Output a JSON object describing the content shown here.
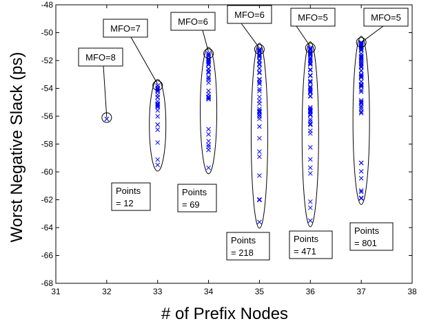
{
  "chart_data": {
    "type": "scatter",
    "xlabel": "# of Prefix Nodes",
    "ylabel": "Worst Negative Slack (ps)",
    "xlim": [
      31,
      38
    ],
    "ylim": [
      -68,
      -48
    ],
    "xticks": [
      31,
      32,
      33,
      34,
      35,
      36,
      37,
      38
    ],
    "yticks": [
      -68,
      -66,
      -64,
      -62,
      -60,
      -58,
      -56,
      -54,
      -52,
      -50,
      -48
    ],
    "grid": false,
    "marker": "x",
    "marker_color": "#0000ff",
    "columns": [
      {
        "x": 32,
        "y_min": -56.2,
        "y_max": -56.2,
        "best_slack": -56.2
      },
      {
        "x": 33,
        "y_min": -59.5,
        "y_max": -53.8,
        "best_slack": -53.8
      },
      {
        "x": 34,
        "y_min": -59.7,
        "y_max": -51.5,
        "best_slack": -51.5
      },
      {
        "x": 35,
        "y_min": -63.6,
        "y_max": -51.2,
        "best_slack": -51.2
      },
      {
        "x": 36,
        "y_min": -63.5,
        "y_max": -51.1,
        "best_slack": -51.1
      },
      {
        "x": 37,
        "y_min": -61.9,
        "y_max": -50.7,
        "best_slack": -50.7
      }
    ],
    "annotations": [
      {
        "text": "MFO=8",
        "target_x": 32,
        "target_y": -56.1
      },
      {
        "text": "MFO=7",
        "target_x": 33,
        "target_y": -53.7
      },
      {
        "text": "MFO=6",
        "target_x": 34,
        "target_y": -51.4
      },
      {
        "text": "MFO=6",
        "target_x": 35,
        "target_y": -51.1
      },
      {
        "text": "MFO=5",
        "target_x": 36,
        "target_y": -51.0
      },
      {
        "text": "MFO=5",
        "target_x": 37,
        "target_y": -50.7
      }
    ],
    "point_counts": [
      {
        "line1": "Points",
        "line2": "= 12",
        "x": 33
      },
      {
        "line1": "Points",
        "line2": "= 69",
        "x": 34
      },
      {
        "line1": "Points",
        "line2": "= 218",
        "x": 35
      },
      {
        "line1": "Points",
        "line2": "= 471",
        "x": 36
      },
      {
        "line1": "Points",
        "line2": "= 801",
        "x": 37
      }
    ]
  }
}
